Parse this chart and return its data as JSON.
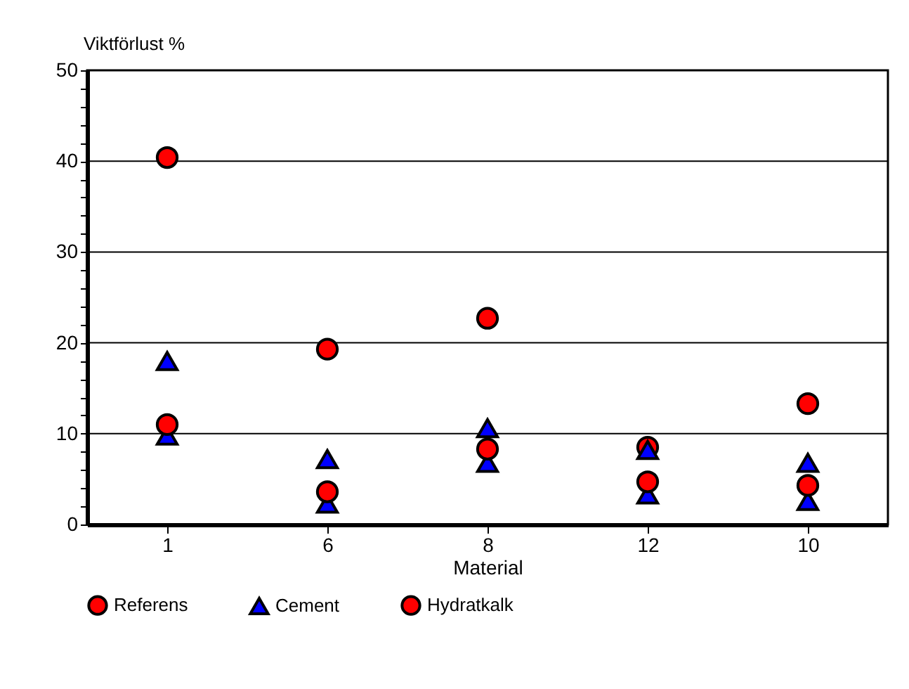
{
  "chart_data": {
    "type": "scatter",
    "xlabel": "Material",
    "ylabel": "Viktförlust %",
    "categories": [
      "1",
      "6",
      "8",
      "12",
      "10"
    ],
    "series": [
      {
        "name": "Referens",
        "color": "#ff0000",
        "marker": "circle",
        "values": [
          40.4,
          19.3,
          22.7,
          8.5,
          13.3
        ]
      },
      {
        "name": "Cement",
        "color": "#0000ff",
        "marker": "triangle",
        "values": [
          9.8,
          2.3,
          6.8,
          3.3,
          2.6
        ]
      },
      {
        "name": "Hydratkalk",
        "color": "#ff0000",
        "marker": "circle",
        "values": [
          11,
          3.6,
          8.3,
          4.7,
          4.3
        ]
      },
      {
        "color": "#0000ff",
        "marker": "triangle",
        "values": [
          18,
          7.2,
          10.6,
          8.2,
          6.8
        ]
      }
    ],
    "ylim": [
      0,
      50
    ],
    "yticks": [
      0,
      {
        "value": 2,
        "label": null
      },
      {
        "value": 4,
        "label": null
      },
      {
        "value": 6,
        "label": null
      },
      {
        "value": 8,
        "label": null
      },
      10,
      {
        "value": 12,
        "label": null
      },
      {
        "value": 14,
        "label": null
      },
      {
        "value": 16,
        "label": null
      },
      {
        "value": 18,
        "label": null
      },
      20,
      {
        "value": 22,
        "label": null
      },
      {
        "value": 24,
        "label": null
      },
      {
        "value": 26,
        "label": null
      },
      {
        "value": 28,
        "label": null
      },
      30,
      {
        "value": 32,
        "label": null
      },
      {
        "value": 34,
        "label": null
      },
      {
        "value": 36,
        "label": null
      },
      {
        "value": 38,
        "label": null
      },
      40,
      {
        "value": 42,
        "label": null
      },
      {
        "value": 44,
        "label": null
      },
      {
        "value": 46,
        "label": null
      },
      {
        "value": 48,
        "label": null
      },
      50
    ],
    "grid": "y",
    "legend": "bottom"
  }
}
